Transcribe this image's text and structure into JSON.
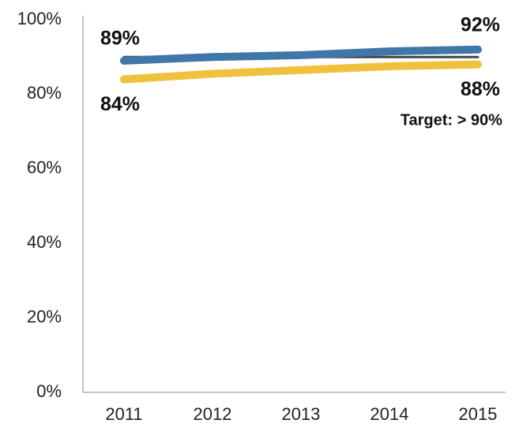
{
  "chart_data": {
    "type": "line",
    "categories": [
      "2011",
      "2012",
      "2013",
      "2014",
      "2015"
    ],
    "series": [
      {
        "color": "#3e77a8",
        "values": [
          89,
          90,
          90.5,
          91.5,
          92
        ],
        "value_labels": [
          "89%",
          null,
          null,
          null,
          "92%"
        ]
      },
      {
        "color": "#f0c13e",
        "values": [
          84,
          85.5,
          86.5,
          87.5,
          88
        ],
        "value_labels": [
          "84%",
          null,
          null,
          null,
          "88%"
        ]
      },
      {
        "color": "#444444",
        "values": [
          90,
          90,
          90,
          90,
          90
        ]
      }
    ],
    "ylim": [
      0,
      100
    ],
    "yticks": [
      {
        "value": 0,
        "label": "0%"
      },
      {
        "value": 20,
        "label": "20%"
      },
      {
        "value": 40,
        "label": "40%"
      },
      {
        "value": 60,
        "label": "60%"
      },
      {
        "value": 80,
        "label": "80%"
      },
      {
        "value": 100,
        "label": "100%"
      }
    ],
    "annotations": [
      "Target: > 90%"
    ],
    "grid": false
  }
}
